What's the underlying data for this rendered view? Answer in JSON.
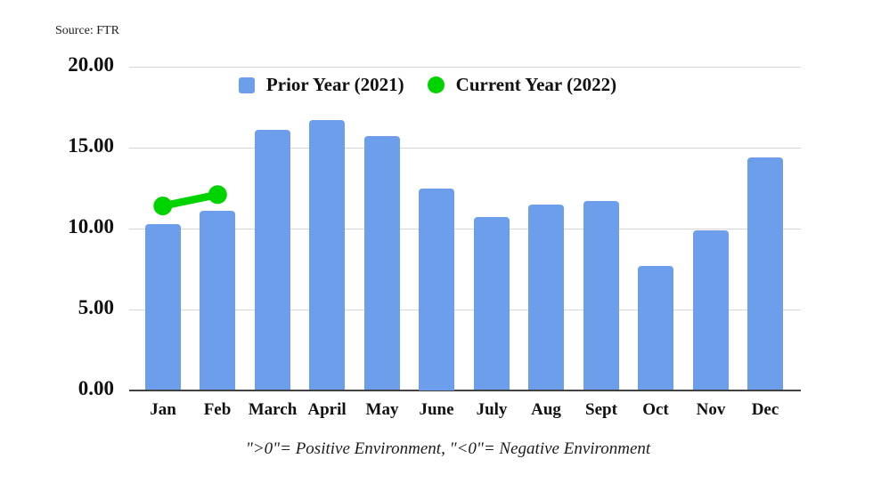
{
  "source_label": "Source: FTR",
  "legend": {
    "prior_label": "Prior Year (2021)",
    "current_label": "Current Year (2022)"
  },
  "footnote": "\">0\"= Positive Environment, \"<0\"= Negative Environment",
  "colors": {
    "bar_blue": "#6d9eeb",
    "current_green": "#00d400",
    "gridline": "#d6d6d6",
    "axis": "#424242",
    "text": "#111111"
  },
  "chart_data": {
    "type": "bar",
    "categories": [
      "Jan",
      "Feb",
      "March",
      "April",
      "May",
      "June",
      "July",
      "Aug",
      "Sept",
      "Oct",
      "Nov",
      "Dec"
    ],
    "series": [
      {
        "name": "Prior Year (2021)",
        "type": "bar",
        "color": "#6d9eeb",
        "values": [
          10.3,
          11.1,
          16.1,
          16.7,
          15.7,
          12.5,
          10.7,
          11.5,
          11.7,
          7.7,
          9.9,
          14.4
        ]
      },
      {
        "name": "Current Year (2022)",
        "type": "line-with-points",
        "color": "#00d400",
        "values": [
          11.4,
          12.1,
          null,
          null,
          null,
          null,
          null,
          null,
          null,
          null,
          null,
          null
        ]
      }
    ],
    "title": "",
    "xlabel": "",
    "ylabel": "",
    "ylim": [
      0,
      20
    ],
    "y_ticks": [
      0,
      5,
      10,
      15,
      20
    ],
    "y_tick_labels": [
      "0.00",
      "5.00",
      "10.00",
      "15.00",
      "20.00"
    ],
    "grid": "horizontal",
    "legend_position": "top-center",
    "source": "Source: FTR",
    "annotation": "\">0\"= Positive Environment, \"<0\"= Negative Environment"
  }
}
